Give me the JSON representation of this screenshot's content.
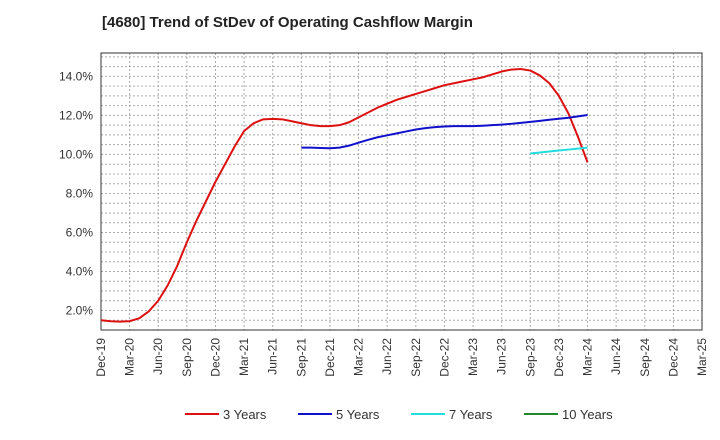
{
  "chart_data": {
    "type": "line",
    "title": "[4680]  Trend of StDev of Operating Cashflow Margin",
    "xlabel": "",
    "ylabel": "",
    "ylim": [
      1.0,
      15.2
    ],
    "yticks": [
      "2.0%",
      "4.0%",
      "6.0%",
      "8.0%",
      "10.0%",
      "12.0%",
      "14.0%"
    ],
    "yticks_values": [
      2,
      4,
      6,
      8,
      10,
      12,
      14
    ],
    "x_categories": [
      "Dec-19",
      "Mar-20",
      "Jun-20",
      "Sep-20",
      "Dec-20",
      "Mar-21",
      "Jun-21",
      "Sep-21",
      "Dec-21",
      "Mar-22",
      "Jun-22",
      "Sep-22",
      "Dec-22",
      "Mar-23",
      "Jun-23",
      "Sep-23",
      "Dec-23",
      "Mar-24",
      "Jun-24",
      "Sep-24",
      "Dec-24",
      "Mar-25"
    ],
    "grid": true,
    "legend_position": "bottom",
    "series": [
      {
        "name": "3 Years",
        "color": "#dd1111",
        "points": [
          [
            "Dec-19",
            1.5
          ],
          [
            "Jan-20",
            1.45
          ],
          [
            "Feb-20",
            1.43
          ],
          [
            "Mar-20",
            1.45
          ],
          [
            "Apr-20",
            1.6
          ],
          [
            "May-20",
            1.95
          ],
          [
            "Jun-20",
            2.5
          ],
          [
            "Jul-20",
            3.3
          ],
          [
            "Aug-20",
            4.3
          ],
          [
            "Sep-20",
            5.5
          ],
          [
            "Oct-20",
            6.6
          ],
          [
            "Nov-20",
            7.6
          ],
          [
            "Dec-20",
            8.6
          ],
          [
            "Jan-21",
            9.5
          ],
          [
            "Feb-21",
            10.4
          ],
          [
            "Mar-21",
            11.2
          ],
          [
            "Apr-21",
            11.6
          ],
          [
            "May-21",
            11.8
          ],
          [
            "Jun-21",
            11.82
          ],
          [
            "Jul-21",
            11.8
          ],
          [
            "Aug-21",
            11.7
          ],
          [
            "Sep-21",
            11.6
          ],
          [
            "Oct-21",
            11.5
          ],
          [
            "Nov-21",
            11.45
          ],
          [
            "Dec-21",
            11.45
          ],
          [
            "Jan-22",
            11.5
          ],
          [
            "Feb-22",
            11.65
          ],
          [
            "Mar-22",
            11.9
          ],
          [
            "Apr-22",
            12.15
          ],
          [
            "May-22",
            12.4
          ],
          [
            "Jun-22",
            12.6
          ],
          [
            "Jul-22",
            12.8
          ],
          [
            "Aug-22",
            12.95
          ],
          [
            "Sep-22",
            13.1
          ],
          [
            "Oct-22",
            13.25
          ],
          [
            "Nov-22",
            13.4
          ],
          [
            "Dec-22",
            13.55
          ],
          [
            "Jan-23",
            13.65
          ],
          [
            "Feb-23",
            13.75
          ],
          [
            "Mar-23",
            13.85
          ],
          [
            "Apr-23",
            13.95
          ],
          [
            "May-23",
            14.1
          ],
          [
            "Jun-23",
            14.25
          ],
          [
            "Jul-23",
            14.35
          ],
          [
            "Aug-23",
            14.38
          ],
          [
            "Sep-23",
            14.3
          ],
          [
            "Oct-23",
            14.05
          ],
          [
            "Nov-23",
            13.65
          ],
          [
            "Dec-23",
            13.0
          ],
          [
            "Jan-24",
            12.1
          ],
          [
            "Feb-24",
            10.9
          ],
          [
            "Mar-24",
            9.6
          ]
        ]
      },
      {
        "name": "5 Years",
        "color": "#1111cc",
        "points": [
          [
            "Sep-21",
            10.35
          ],
          [
            "Oct-21",
            10.35
          ],
          [
            "Nov-21",
            10.33
          ],
          [
            "Dec-21",
            10.32
          ],
          [
            "Jan-22",
            10.35
          ],
          [
            "Feb-22",
            10.45
          ],
          [
            "Mar-22",
            10.6
          ],
          [
            "Apr-22",
            10.75
          ],
          [
            "May-22",
            10.88
          ],
          [
            "Jun-22",
            10.98
          ],
          [
            "Jul-22",
            11.08
          ],
          [
            "Aug-22",
            11.18
          ],
          [
            "Sep-22",
            11.28
          ],
          [
            "Oct-22",
            11.35
          ],
          [
            "Nov-22",
            11.4
          ],
          [
            "Dec-22",
            11.43
          ],
          [
            "Jan-23",
            11.45
          ],
          [
            "Feb-23",
            11.45
          ],
          [
            "Mar-23",
            11.45
          ],
          [
            "Apr-23",
            11.47
          ],
          [
            "May-23",
            11.5
          ],
          [
            "Jun-23",
            11.53
          ],
          [
            "Jul-23",
            11.57
          ],
          [
            "Aug-23",
            11.62
          ],
          [
            "Sep-23",
            11.67
          ],
          [
            "Oct-23",
            11.72
          ],
          [
            "Nov-23",
            11.78
          ],
          [
            "Dec-23",
            11.83
          ],
          [
            "Jan-24",
            11.88
          ],
          [
            "Feb-24",
            11.95
          ],
          [
            "Mar-24",
            12.02
          ]
        ]
      },
      {
        "name": "7 Years",
        "color": "#22dddd",
        "points": [
          [
            "Sep-23",
            10.05
          ],
          [
            "Oct-23",
            10.1
          ],
          [
            "Nov-23",
            10.15
          ],
          [
            "Dec-23",
            10.2
          ],
          [
            "Jan-24",
            10.25
          ],
          [
            "Feb-24",
            10.3
          ],
          [
            "Mar-24",
            10.35
          ]
        ]
      },
      {
        "name": "10 Years",
        "color": "#22882b",
        "points": []
      }
    ]
  }
}
